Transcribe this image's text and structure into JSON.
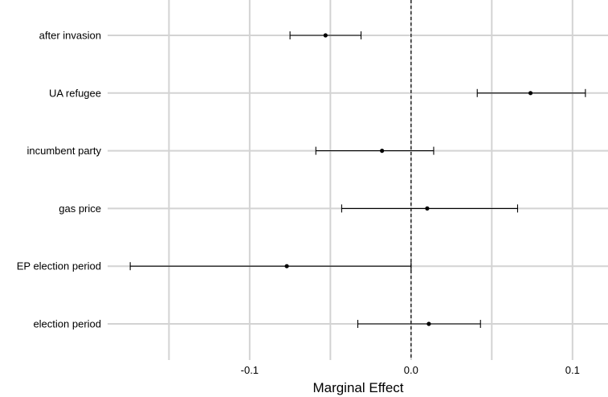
{
  "chart_data": {
    "type": "scatter",
    "title": "",
    "xlabel": "Marginal Effect",
    "ylabel": "",
    "xlim": [
      -0.188,
      0.122
    ],
    "x_ticks": [
      -0.1,
      0.0,
      0.1
    ],
    "x_tick_labels": [
      "-0.1",
      "0.0",
      "0.1"
    ],
    "minor_x_gridlines": [
      -0.15,
      -0.05,
      0.05
    ],
    "reference_line": {
      "x": 0,
      "style": "dashed"
    },
    "grid": true,
    "legend": "none",
    "categories": [
      "after invasion",
      "UA refugee",
      "incumbent party",
      "gas price",
      "EP election period",
      "election period"
    ],
    "estimates": [
      -0.053,
      0.074,
      -0.018,
      0.01,
      -0.077,
      0.011
    ],
    "ci_low": [
      -0.075,
      0.041,
      -0.059,
      -0.043,
      -0.174,
      -0.033
    ],
    "ci_high": [
      -0.031,
      0.108,
      0.014,
      0.066,
      0.0,
      0.043
    ],
    "colors": {
      "background": "#ffffff",
      "grid": "#d3d3d3",
      "marks": "#000000"
    }
  }
}
